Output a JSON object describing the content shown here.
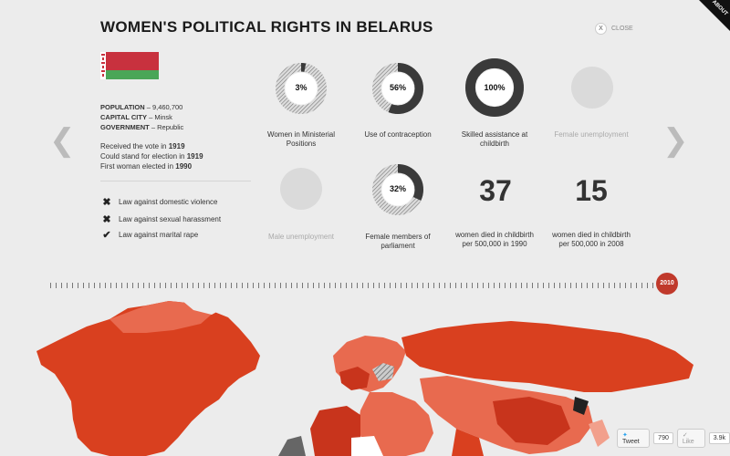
{
  "title": "WOMEN'S POLITICAL RIGHTS IN BELARUS",
  "close_label": "CLOSE",
  "close_glyph": "X",
  "about_label": "ABOUT",
  "facts": {
    "population_label": "POPULATION",
    "population_value": " – 9,460,700",
    "capital_label": "CAPITAL CITY",
    "capital_value": " – Minsk",
    "government_label": "GOVERNMENT",
    "government_value": " – Republic"
  },
  "vote": {
    "line1": "Received the vote in ",
    "year1": "1919",
    "line2": "Could stand for election in ",
    "year2": "1919",
    "line3": "First woman elected in ",
    "year3": "1990"
  },
  "laws": [
    {
      "label": "Law against domestic violence",
      "icon": "cross-icon",
      "glyph": "✖"
    },
    {
      "label": "Law against sexual harassment",
      "icon": "cross-icon",
      "glyph": "✖"
    },
    {
      "label": "Law against marital rape",
      "icon": "check-icon",
      "glyph": "✔"
    }
  ],
  "stats": {
    "ministerial": {
      "value_text": "3%",
      "percent": 3,
      "label": "Women in Ministerial Positions"
    },
    "contraception": {
      "value_text": "56%",
      "percent": 56,
      "label": "Use of contraception"
    },
    "skilled": {
      "value_text": "100%",
      "percent": 100,
      "label": "Skilled assistance at childbirth"
    },
    "female_unemployment": {
      "label": "Female unemployment"
    },
    "male_unemployment": {
      "label": "Male unemployment"
    },
    "parliament": {
      "value_text": "32%",
      "percent": 32,
      "label": "Female members of parliament"
    },
    "maternal_1990": {
      "number": "37",
      "label": "women died in childbirth per 500,000 in 1990"
    },
    "maternal_2008": {
      "number": "15",
      "label": "women died in childbirth per 500,000 in 2008"
    }
  },
  "nav": {
    "prev_glyph": "❮",
    "next_glyph": "❯"
  },
  "timeline": {
    "year": "2010"
  },
  "social": {
    "tweet_label": "Tweet",
    "tweet_count": "790",
    "like_label": "✓ Like",
    "like_count": "3.9k"
  },
  "colors": {
    "accent": "#c0392b",
    "ring_dark": "#3a3a3a",
    "ring_hatch": "#9a9a9a",
    "map_dark": "#d9401f",
    "map_mid": "#e56a4f",
    "map_light": "#f2a08c"
  }
}
